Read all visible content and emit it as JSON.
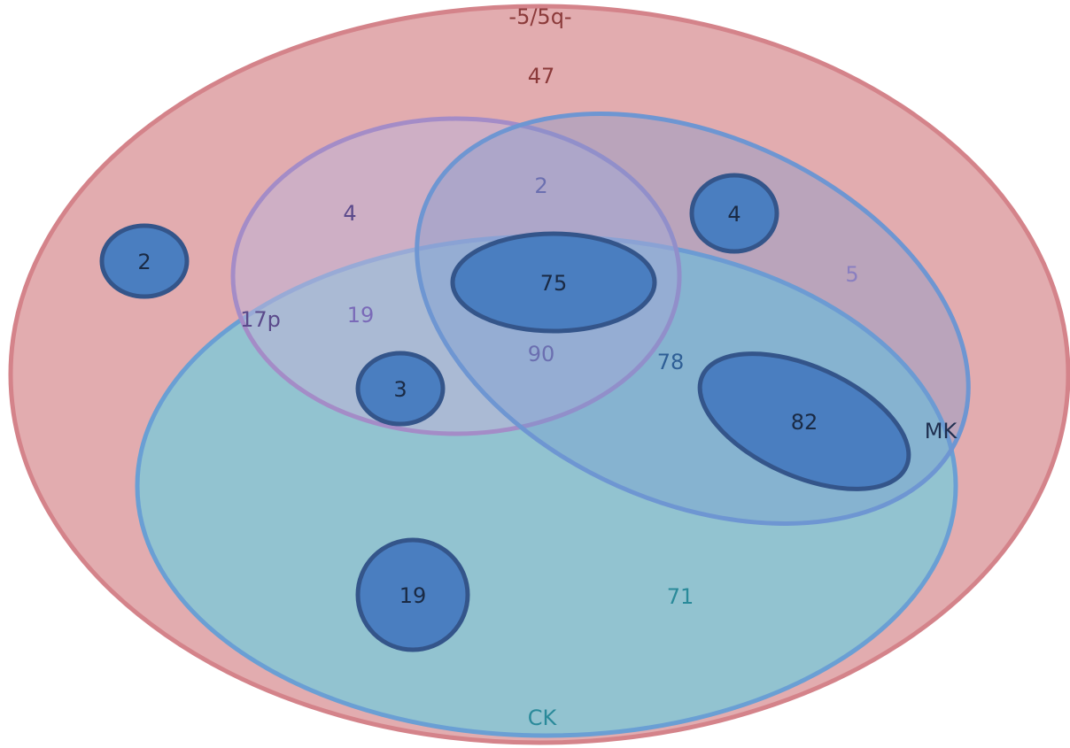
{
  "sets": {
    "del5": {
      "label": "-5/5q-",
      "color": "#8B3A3A"
    },
    "p17": {
      "label": "17p",
      "color": "#5B4A8B"
    },
    "mk": {
      "label": "MK",
      "color": "#1F2F4F"
    },
    "ck": {
      "label": "CK",
      "color": "#2A8A9A"
    }
  },
  "regions": {
    "del5_only": "47",
    "del5_p17": "4",
    "del5_p17_mk": "2",
    "del5_mk": "5",
    "del5_p17_ck": "19",
    "del5_p17_mk_ck": "90",
    "del5_mk_ck": "78",
    "del5_ck": "71"
  },
  "subgroups": [
    {
      "id": "a",
      "value": "2"
    },
    {
      "id": "b",
      "value": "4"
    },
    {
      "id": "c",
      "value": "75"
    },
    {
      "id": "d",
      "value": "3"
    },
    {
      "id": "e",
      "value": "82"
    },
    {
      "id": "f",
      "value": "19"
    }
  ]
}
